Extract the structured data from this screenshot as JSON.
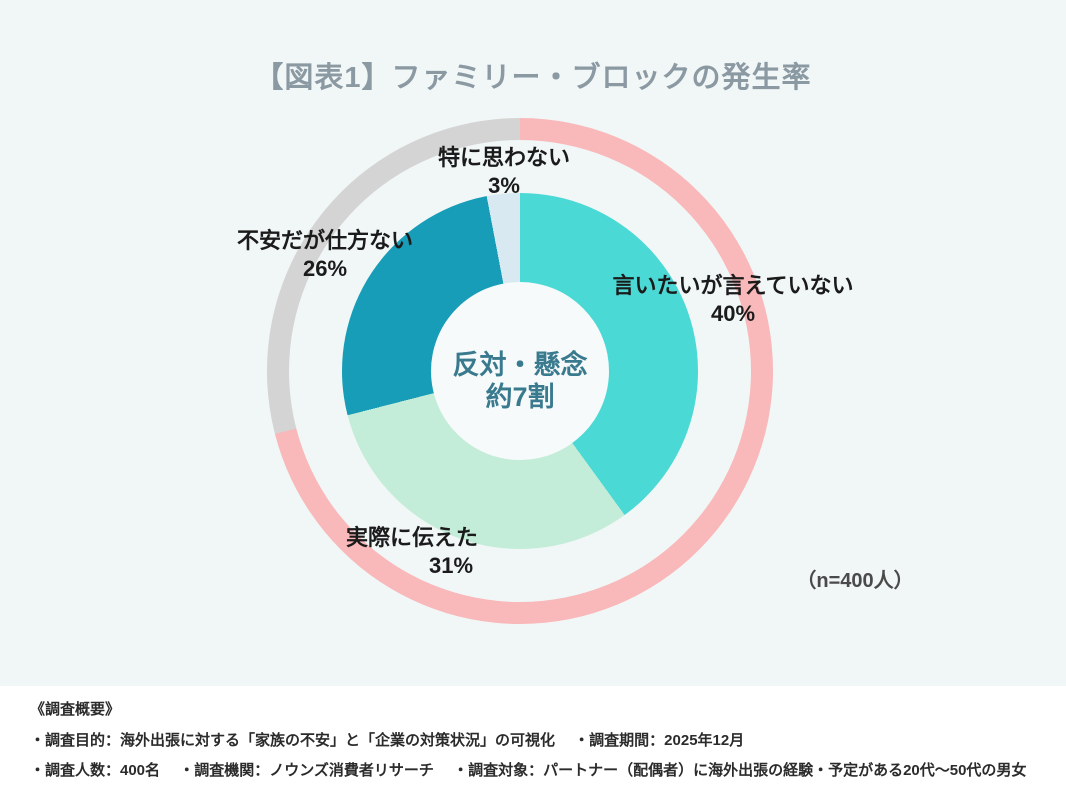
{
  "chart_data": {
    "type": "donut",
    "title": "【図表1】ファミリー・ブロックの発生率",
    "title_color": "#8b99a3",
    "background_color": "#f1f6f6",
    "n_label": "（n=400人）",
    "start_angle_deg": 0,
    "center_label": {
      "line1": "反対・懸念",
      "line2": "約7割",
      "color": "#3a7a8e"
    },
    "segments": [
      {
        "label": "言いたいが言えていない",
        "value": 40,
        "pct_label": "40%",
        "color": "#4bd9d6"
      },
      {
        "label": "実際に伝えた",
        "value": 31,
        "pct_label": "31%",
        "color": "#c3edd9"
      },
      {
        "label": "不安だが仕方ない",
        "value": 26,
        "pct_label": "26%",
        "color": "#179db7"
      },
      {
        "label": "特に思わない",
        "value": 3,
        "pct_label": "3%",
        "color": "#d8e9f2"
      }
    ],
    "outer_ring": {
      "highlight_percent": 71,
      "highlight_color": "#f9b8ba",
      "rest_color": "#d4d4d4"
    }
  },
  "footer": {
    "heading": "《調査概要》",
    "line1": "・調査目的：海外出張に対する「家族の不安」と「企業の対策状況」の可視化　 ・調査期間：2025年12月",
    "line2": "・調査人数：400名　 ・調査機関：ノウンズ消費者リサーチ　 ・調査対象：パートナー（配偶者）に海外出張の経験・予定がある20代〜50代の男女"
  }
}
